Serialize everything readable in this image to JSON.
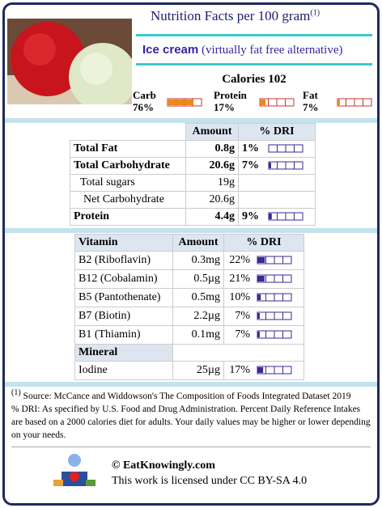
{
  "header": {
    "title": "Nutrition Facts per 100 gram",
    "title_note": "(1)",
    "food_name": "Ice cream",
    "food_description": "(virtually fat free alternative)"
  },
  "calories": {
    "label": "Calories",
    "value": 102
  },
  "macros": [
    {
      "name": "Carb",
      "value": 76,
      "label": "76%"
    },
    {
      "name": "Protein",
      "value": 17,
      "label": "17%"
    },
    {
      "name": "Fat",
      "value": 7,
      "label": "7%"
    }
  ],
  "nutrients_table": {
    "columns": [
      "Amount",
      "% DRI"
    ],
    "rows": [
      {
        "name": "Total Fat",
        "amount": "0.8g",
        "dri": 1,
        "dri_label": "1%",
        "bold": true
      },
      {
        "name": "Total Carbohydrate",
        "amount": "20.6g",
        "dri": 7,
        "dri_label": "7%",
        "bold": true
      },
      {
        "name": "Total sugars",
        "amount": "19g",
        "sub": true
      },
      {
        "name": "Net Carbohydrate",
        "amount": "20.6g",
        "sub": true
      },
      {
        "name": "Protein",
        "amount": "4.4g",
        "dri": 9,
        "dri_label": "9%",
        "bold": true
      }
    ]
  },
  "vitamins_table": {
    "columns": [
      "Vitamin",
      "Amount",
      "% DRI"
    ],
    "rows": [
      {
        "name": "B2 (Riboflavin)",
        "amount": "0.3mg",
        "dri": 22,
        "dri_label": "22%"
      },
      {
        "name": "B12 (Cobalamin)",
        "amount": "0.5µg",
        "dri": 21,
        "dri_label": "21%"
      },
      {
        "name": "B5 (Pantothenate)",
        "amount": "0.5mg",
        "dri": 10,
        "dri_label": "10%"
      },
      {
        "name": "B7 (Biotin)",
        "amount": "2.2µg",
        "dri": 7,
        "dri_label": "7%"
      },
      {
        "name": "B1 (Thiamin)",
        "amount": "0.1mg",
        "dri": 7,
        "dri_label": "7%"
      }
    ],
    "mineral_header": "Mineral",
    "minerals": [
      {
        "name": "Iodine",
        "amount": "25µg",
        "dri": 17,
        "dri_label": "17%"
      }
    ]
  },
  "footnote": {
    "note": "(1)",
    "source": "Source: McCance and Widdowson's The Composition of Foods Integrated Dataset 2019",
    "dri_text": "% DRI: As specified by U.S. Food and Drug Administration. Percent Daily Reference Intakes are based on a 2000 calories diet for adults. Your daily values may be higher or lower depending on your needs."
  },
  "footer": {
    "copyright": "© EatKnowingly.com",
    "license": "This work is licensed under CC BY-SA 4.0"
  }
}
